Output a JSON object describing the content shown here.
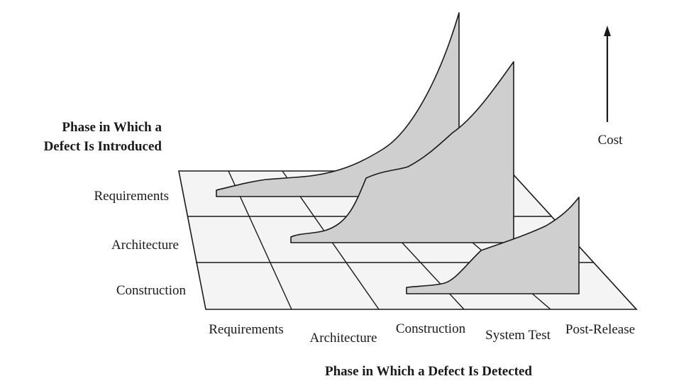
{
  "diagram": {
    "y_axis_title": [
      "Phase in Which a",
      "Defect Is Introduced"
    ],
    "x_axis_title": "Phase in Which a Defect Is Detected",
    "z_axis_label": "Cost",
    "introduced_phases": [
      "Requirements",
      "Architecture",
      "Construction"
    ],
    "detected_phases": [
      "Requirements",
      "Architecture",
      "Construction",
      "System Test",
      "Post-Release"
    ],
    "colors": {
      "surface": "#cfcfcf",
      "plane": "#f4f4f4",
      "line": "#1a1a1a"
    }
  }
}
